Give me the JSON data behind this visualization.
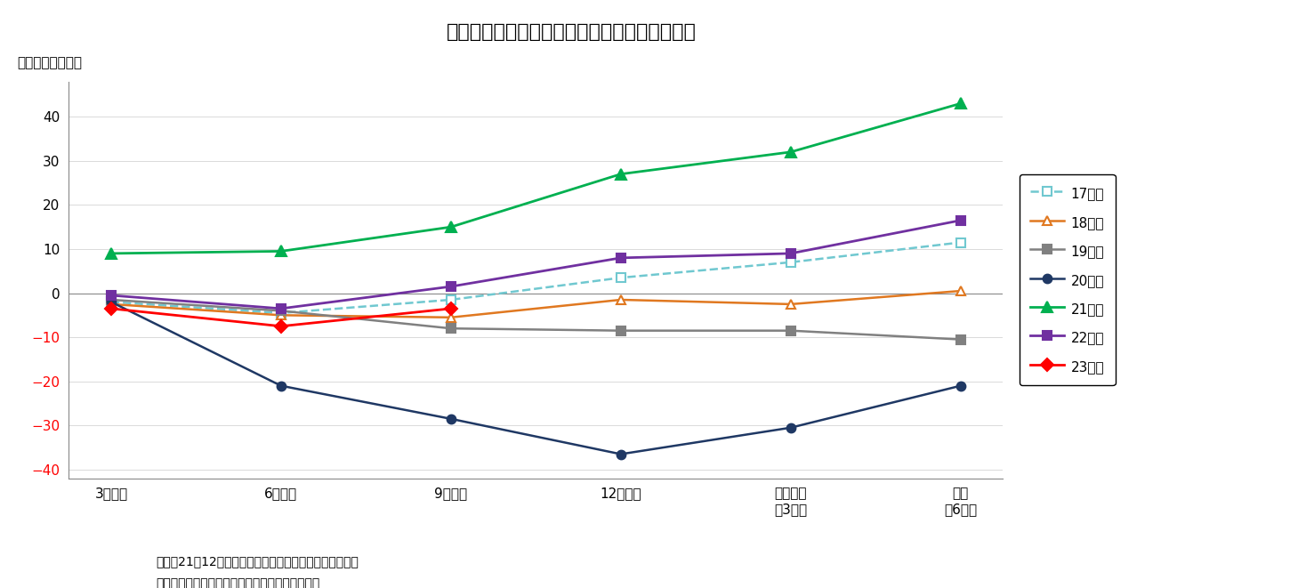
{
  "title": "（図表８）　経常利益計画（全規模・全産業）",
  "ylabel": "（対前年比、％）",
  "x_labels": [
    "3月調査",
    "6月調査",
    "9月調査",
    "12月調査",
    "実績見込\n（3月）",
    "実績\n（6月）"
  ],
  "note1": "（注）21年12月調査以降は調査対象見直し後の新ベース",
  "note2": "（資料）日本銀行「全国企業短期経済観測調査」",
  "series": [
    {
      "label": "17年度",
      "color": "#70C8D0",
      "linestyle": "dashed",
      "marker": "s",
      "markerfacecolor": "white",
      "markeredgecolor": "#70C8D0",
      "linewidth": 1.8,
      "markersize": 7,
      "values": [
        -2.0,
        -4.5,
        -1.5,
        3.5,
        7.0,
        11.5
      ]
    },
    {
      "label": "18年度",
      "color": "#E07820",
      "linestyle": "solid",
      "marker": "^",
      "markerfacecolor": "white",
      "markeredgecolor": "#E07820",
      "linewidth": 1.8,
      "markersize": 7,
      "values": [
        -2.5,
        -5.0,
        -5.5,
        -1.5,
        -2.5,
        0.5
      ]
    },
    {
      "label": "19年度",
      "color": "#808080",
      "linestyle": "solid",
      "marker": "s",
      "markerfacecolor": "#808080",
      "markeredgecolor": "#808080",
      "linewidth": 1.8,
      "markersize": 7,
      "values": [
        -1.5,
        -4.0,
        -8.0,
        -8.5,
        -8.5,
        -10.5
      ]
    },
    {
      "label": "20年度",
      "color": "#1F3864",
      "linestyle": "solid",
      "marker": "o",
      "markerfacecolor": "#1F3864",
      "markeredgecolor": "#1F3864",
      "linewidth": 1.8,
      "markersize": 7,
      "values": [
        -2.0,
        -21.0,
        -28.5,
        -36.5,
        -30.5,
        -21.0
      ]
    },
    {
      "label": "21年度",
      "color": "#00B050",
      "linestyle": "solid",
      "marker": "^",
      "markerfacecolor": "#00B050",
      "markeredgecolor": "#00B050",
      "linewidth": 2.0,
      "markersize": 8,
      "values": [
        9.0,
        9.5,
        15.0,
        27.0,
        32.0,
        43.0
      ]
    },
    {
      "label": "22年度",
      "color": "#7030A0",
      "linestyle": "solid",
      "marker": "s",
      "markerfacecolor": "#7030A0",
      "markeredgecolor": "#7030A0",
      "linewidth": 2.0,
      "markersize": 7,
      "values": [
        -0.5,
        -3.5,
        1.5,
        8.0,
        9.0,
        16.5
      ]
    },
    {
      "label": "23年度",
      "color": "#FF0000",
      "linestyle": "solid",
      "marker": "D",
      "markerfacecolor": "#FF0000",
      "markeredgecolor": "#FF0000",
      "linewidth": 2.0,
      "markersize": 7,
      "values": [
        -3.5,
        -7.5,
        -3.5,
        null,
        null,
        null
      ]
    }
  ],
  "ylim": [
    -42,
    48
  ],
  "yticks": [
    -40,
    -30,
    -20,
    -10,
    0,
    10,
    20,
    30,
    40
  ],
  "background_color": "#FFFFFF",
  "plot_bg_color": "#FFFFFF",
  "grid_color": "#CCCCCC",
  "zero_line_color": "#888888",
  "title_fontsize": 16,
  "axis_label_fontsize": 11,
  "tick_fontsize": 11,
  "legend_fontsize": 11,
  "note_fontsize": 10
}
